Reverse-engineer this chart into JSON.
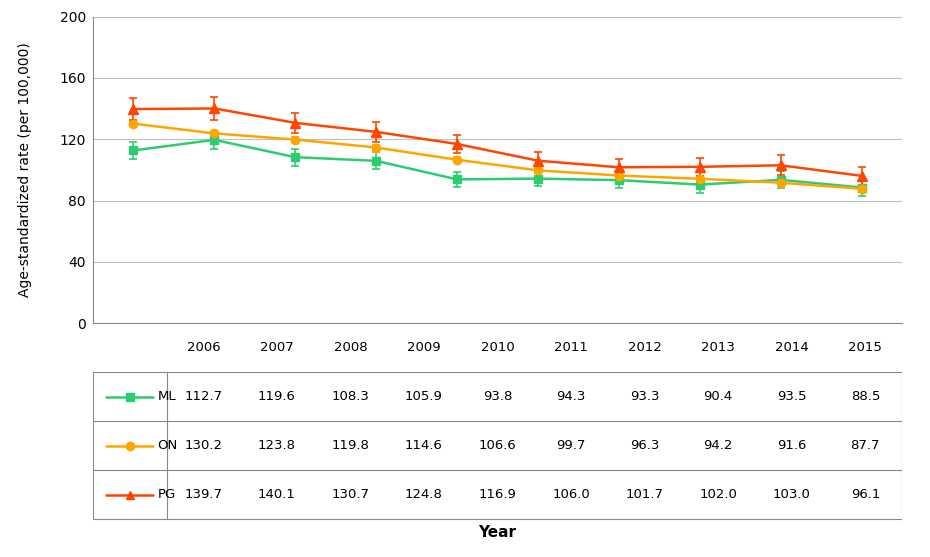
{
  "years": [
    2006,
    2007,
    2008,
    2009,
    2010,
    2011,
    2012,
    2013,
    2014,
    2015
  ],
  "ML": [
    112.7,
    119.6,
    108.3,
    105.9,
    93.8,
    94.3,
    93.3,
    90.4,
    93.5,
    88.5
  ],
  "ON": [
    130.2,
    123.8,
    119.8,
    114.6,
    106.6,
    99.7,
    96.3,
    94.2,
    91.6,
    87.7
  ],
  "PG": [
    139.7,
    140.1,
    130.7,
    124.8,
    116.9,
    106.0,
    101.7,
    102.0,
    103.0,
    96.1
  ],
  "ML_err": [
    5.5,
    6.0,
    5.5,
    5.5,
    5.0,
    5.0,
    5.0,
    5.5,
    5.5,
    5.5
  ],
  "ON_err": [
    1.5,
    1.5,
    1.5,
    1.5,
    1.5,
    1.5,
    1.5,
    1.5,
    1.5,
    1.5
  ],
  "PG_err": [
    7.0,
    7.5,
    6.5,
    6.5,
    6.0,
    5.5,
    5.5,
    6.0,
    6.5,
    6.0
  ],
  "ML_color": "#2ECC71",
  "ON_color": "#FFA500",
  "PG_color": "#FF4500",
  "ylabel": "Age-standardized rate (per 100,000)",
  "xlabel": "Year",
  "ylim": [
    0,
    200
  ],
  "yticks": [
    0,
    40,
    80,
    120,
    160,
    200
  ],
  "bg_color": "#FFFFFF",
  "grid_color": "#C0C0C0",
  "border_color": "#888888",
  "ML_marker": "s",
  "ON_marker": "o",
  "PG_marker": "^",
  "ML_label": "ML",
  "ON_label": "ON",
  "PG_label": "PG"
}
